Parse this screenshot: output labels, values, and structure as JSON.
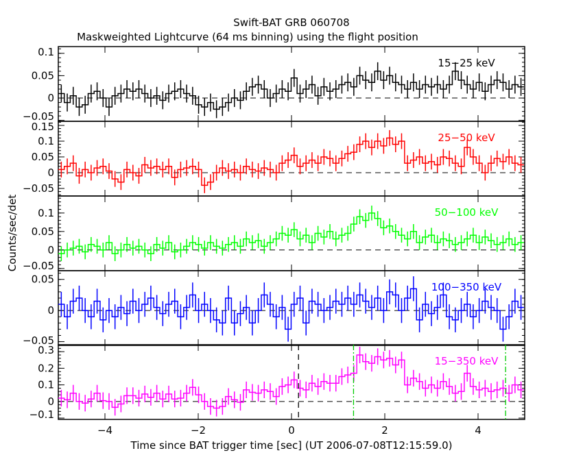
{
  "chart_data": {
    "type": "line",
    "title": "Swift-BAT GRB 060708",
    "subtitle": "Maskweighted Lightcurve (64 ms binning) using the flight position",
    "xlabel": "Time since BAT trigger time [sec] (UT 2006-07-08T12:15:59.0)",
    "ylabel": "Counts/sec/det",
    "xlim": [
      -5,
      5
    ],
    "x_start": -5,
    "x_step": 0.128,
    "x_ticks": [
      "-4",
      "-2",
      "0",
      "2",
      "4"
    ],
    "x_tick_values": [
      -4,
      -2,
      0,
      2,
      4
    ],
    "vlines": [
      {
        "x": 0.15,
        "style": "dashed",
        "color": "#000000"
      },
      {
        "x": 1.33,
        "style": "dashdot",
        "color": "#00cc00"
      },
      {
        "x": 4.59,
        "style": "dashdot",
        "color": "#00cc00"
      }
    ],
    "series": [
      {
        "name": "15-25 keV",
        "color": "#000000",
        "ylim": [
          -0.052,
          0.115
        ],
        "y_ticks": [
          "0.1",
          "0.05",
          "0",
          "-0.05"
        ],
        "y_tick_values": [
          0.1,
          0.05,
          0,
          -0.05
        ],
        "minor_step": 0.01,
        "err": 0.02,
        "values": [
          0.01,
          -0.01,
          0.005,
          -0.02,
          -0.015,
          0.01,
          0.015,
          0.0,
          -0.02,
          0.005,
          0.01,
          0.02,
          0.015,
          0.02,
          0.01,
          0.0,
          0.005,
          -0.005,
          0.01,
          0.015,
          0.02,
          0.01,
          0.005,
          -0.015,
          -0.02,
          -0.01,
          -0.025,
          -0.02,
          -0.01,
          0.0,
          -0.005,
          0.015,
          0.025,
          0.03,
          0.02,
          0.0,
          0.01,
          0.02,
          0.015,
          0.045,
          0.01,
          0.02,
          0.03,
          0.005,
          0.025,
          0.015,
          0.02,
          0.03,
          0.035,
          0.025,
          0.05,
          0.04,
          0.035,
          0.06,
          0.04,
          0.05,
          0.035,
          0.03,
          0.02,
          0.035,
          0.02,
          0.03,
          0.025,
          0.03,
          0.02,
          0.03,
          0.06,
          0.04,
          0.03,
          0.02,
          0.035,
          0.015,
          0.03,
          0.04,
          0.035,
          0.02,
          0.03,
          0.025
        ]
      },
      {
        "name": "25-50 keV",
        "color": "#ff0000",
        "ylim": [
          -0.074,
          0.163
        ],
        "y_ticks": [
          "0.15",
          "0.1",
          "0.05",
          "0",
          "-0.05"
        ],
        "y_tick_values": [
          0.15,
          0.1,
          0.05,
          0,
          -0.05
        ],
        "minor_step": 0.01,
        "err": 0.025,
        "values": [
          0.01,
          0.02,
          0.03,
          -0.01,
          0.01,
          0.0,
          0.015,
          0.02,
          0.005,
          -0.02,
          -0.03,
          0.01,
          0.0,
          -0.01,
          0.025,
          0.015,
          0.02,
          0.01,
          0.02,
          -0.015,
          0.01,
          0.015,
          0.02,
          0.01,
          -0.04,
          -0.03,
          0.0,
          0.015,
          0.005,
          0.01,
          0.0,
          0.02,
          0.01,
          0.005,
          0.015,
          0.01,
          0.0,
          0.03,
          0.04,
          0.055,
          0.02,
          0.03,
          0.04,
          0.03,
          0.05,
          0.045,
          0.03,
          0.045,
          0.06,
          0.065,
          0.09,
          0.1,
          0.08,
          0.1,
          0.085,
          0.11,
          0.09,
          0.1,
          0.03,
          0.04,
          0.05,
          0.03,
          0.035,
          0.025,
          0.05,
          0.045,
          0.03,
          0.02,
          0.08,
          0.05,
          0.03,
          0.0,
          0.03,
          0.045,
          0.035,
          0.05,
          0.03,
          0.025
        ]
      },
      {
        "name": "50-100 keV",
        "color": "#00ff00",
        "ylim": [
          -0.056,
          0.146
        ],
        "y_ticks": [
          "0.1",
          "0.05",
          "0",
          "-0.05"
        ],
        "y_tick_values": [
          0.1,
          0.05,
          0,
          -0.05
        ],
        "minor_step": 0.01,
        "err": 0.02,
        "values": [
          -0.01,
          0.0,
          0.005,
          0.01,
          -0.005,
          0.015,
          0.01,
          0.0,
          0.02,
          -0.01,
          0.0,
          0.015,
          0.005,
          0.01,
          0.0,
          -0.01,
          0.015,
          0.005,
          0.02,
          -0.005,
          0.0,
          0.01,
          0.02,
          0.015,
          0.005,
          0.02,
          0.01,
          0.005,
          0.015,
          0.02,
          0.01,
          0.03,
          0.02,
          0.025,
          0.01,
          0.02,
          0.03,
          0.045,
          0.04,
          0.055,
          0.03,
          0.04,
          0.02,
          0.045,
          0.035,
          0.05,
          0.03,
          0.04,
          0.045,
          0.07,
          0.09,
          0.08,
          0.1,
          0.085,
          0.06,
          0.065,
          0.05,
          0.04,
          0.03,
          0.05,
          0.02,
          0.035,
          0.04,
          0.02,
          0.03,
          0.025,
          0.015,
          0.02,
          0.03,
          0.04,
          0.02,
          0.035,
          0.025,
          0.015,
          0.02,
          0.03,
          0.015,
          0.02
        ]
      },
      {
        "name": "100-350 keV",
        "color": "#0000ff",
        "ylim": [
          -0.056,
          0.064
        ],
        "y_ticks": [
          "0.05",
          "0",
          "-0.05"
        ],
        "y_tick_values": [
          0.05,
          0,
          -0.05
        ],
        "minor_step": 0.01,
        "err": 0.02,
        "values": [
          0.01,
          -0.01,
          0.015,
          0.02,
          0.0,
          -0.01,
          0.015,
          -0.015,
          0.0,
          -0.01,
          0.005,
          -0.005,
          0.015,
          0.0,
          0.01,
          0.02,
          0.005,
          -0.005,
          0.01,
          0.015,
          -0.01,
          0.005,
          0.025,
          0.0,
          0.01,
          0.0,
          -0.015,
          -0.02,
          0.02,
          -0.02,
          -0.005,
          0.005,
          -0.02,
          0.0,
          0.025,
          0.01,
          -0.01,
          0.005,
          -0.03,
          0.01,
          0.02,
          -0.02,
          0.015,
          0.01,
          0.0,
          0.005,
          0.015,
          0.01,
          0.02,
          0.01,
          0.025,
          0.015,
          0.005,
          0.02,
          0.0,
          0.03,
          0.025,
          0.0,
          0.02,
          0.035,
          -0.015,
          0.01,
          -0.005,
          0.005,
          0.025,
          -0.01,
          -0.015,
          0.0,
          0.01,
          -0.01,
          0.0,
          0.015,
          0.005,
          0.0,
          -0.03,
          -0.01,
          0.015,
          0.005
        ]
      },
      {
        "name": "15-350 keV",
        "color": "#ff00ff",
        "ylim": [
          -0.108,
          0.342
        ],
        "y_ticks": [
          "0.3",
          "0.2",
          "0.1",
          "0",
          "-0.1"
        ],
        "y_tick_values": [
          0.3,
          0.2,
          0.1,
          0,
          -0.1
        ],
        "minor_step": 0.02,
        "err": 0.05,
        "values": [
          0.02,
          0.01,
          0.05,
          0.0,
          -0.01,
          0.015,
          0.05,
          0.005,
          0.0,
          -0.035,
          -0.015,
          0.035,
          0.035,
          0.02,
          0.045,
          0.025,
          0.05,
          0.015,
          0.045,
          0.015,
          0.02,
          0.05,
          0.085,
          0.04,
          0.0,
          -0.03,
          -0.04,
          -0.03,
          0.03,
          0.01,
          -0.005,
          0.07,
          0.055,
          0.05,
          0.07,
          0.06,
          0.03,
          0.09,
          0.1,
          0.13,
          0.08,
          0.07,
          0.11,
          0.09,
          0.12,
          0.11,
          0.11,
          0.15,
          0.16,
          0.17,
          0.28,
          0.24,
          0.23,
          0.27,
          0.25,
          0.26,
          0.22,
          0.25,
          0.1,
          0.14,
          0.12,
          0.08,
          0.1,
          0.08,
          0.12,
          0.09,
          0.05,
          0.06,
          0.17,
          0.09,
          0.07,
          0.08,
          0.06,
          0.07,
          0.08,
          0.05,
          0.1,
          0.07
        ]
      }
    ]
  }
}
